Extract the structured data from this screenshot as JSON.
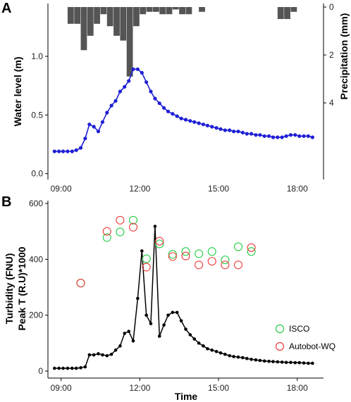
{
  "figure": {
    "panel_a_letter": "A",
    "panel_b_letter": "B",
    "colors": {
      "water_level": "#1f1fd6",
      "precipitation": "#555555",
      "turbidity": "#000000",
      "isco": "#22cc44",
      "autobot": "#ee3b3b",
      "axis": "#000000"
    }
  },
  "chart_data": [
    {
      "type": "line",
      "panel": "A",
      "xlabel": "",
      "ylabel": "Water level (m)",
      "y2label": "Precipitation (mm)",
      "xlim": [
        8.5,
        19.0
      ],
      "ylim": [
        -0.05,
        1.45
      ],
      "y2lim": [
        0,
        7.2
      ],
      "y2_inverted": true,
      "x_ticks": [
        9,
        12,
        15,
        18
      ],
      "x_tick_labels": [
        "09:00",
        "12:00",
        "15:00",
        "18:00"
      ],
      "y_ticks": [
        0.0,
        0.5,
        1.0
      ],
      "y_tick_labels": [
        "0.0",
        "0.5",
        "1.0"
      ],
      "y2_ticks": [
        0,
        2,
        4
      ],
      "y2_tick_labels": [
        "0",
        "2",
        "4"
      ],
      "series": [
        {
          "kind": "line",
          "color": "#1f1fd6",
          "x": [
            8.75,
            8.92,
            9.08,
            9.25,
            9.42,
            9.58,
            9.75,
            9.92,
            10.08,
            10.25,
            10.42,
            10.58,
            10.75,
            10.92,
            11.08,
            11.25,
            11.42,
            11.58,
            11.75,
            11.92,
            12.08,
            12.25,
            12.42,
            12.58,
            12.75,
            12.92,
            13.08,
            13.25,
            13.42,
            13.58,
            13.75,
            13.92,
            14.08,
            14.25,
            14.42,
            14.58,
            14.75,
            14.92,
            15.08,
            15.25,
            15.42,
            15.58,
            15.75,
            15.92,
            16.08,
            16.25,
            16.42,
            16.58,
            16.75,
            16.92,
            17.08,
            17.25,
            17.42,
            17.58,
            17.75,
            17.92,
            18.08,
            18.25,
            18.42,
            18.58
          ],
          "y": [
            0.19,
            0.19,
            0.19,
            0.19,
            0.19,
            0.2,
            0.22,
            0.3,
            0.42,
            0.4,
            0.36,
            0.44,
            0.52,
            0.58,
            0.62,
            0.7,
            0.74,
            0.79,
            0.89,
            0.89,
            0.86,
            0.78,
            0.7,
            0.64,
            0.6,
            0.56,
            0.53,
            0.51,
            0.49,
            0.47,
            0.46,
            0.45,
            0.44,
            0.43,
            0.42,
            0.41,
            0.4,
            0.39,
            0.38,
            0.37,
            0.37,
            0.36,
            0.36,
            0.35,
            0.34,
            0.34,
            0.33,
            0.33,
            0.32,
            0.32,
            0.31,
            0.31,
            0.31,
            0.32,
            0.33,
            0.33,
            0.32,
            0.32,
            0.32,
            0.31
          ]
        },
        {
          "kind": "bar",
          "axis": "y2",
          "color": "#555555",
          "bar_width": 0.25,
          "x": [
            9.375,
            9.625,
            9.875,
            10.125,
            10.375,
            10.625,
            10.875,
            11.125,
            11.375,
            11.625,
            11.875,
            12.125,
            12.375,
            12.625,
            12.875,
            13.125,
            13.375,
            13.625,
            13.875,
            14.125,
            14.375,
            17.375,
            17.625,
            17.875
          ],
          "y": [
            0.7,
            0.7,
            1.8,
            1.2,
            0.7,
            0.3,
            0.8,
            1.2,
            1.4,
            2.9,
            0.8,
            0.3,
            0.2,
            0.2,
            0.3,
            0.3,
            0.1,
            0.3,
            0.3,
            0.0,
            0.2,
            0.5,
            0.5,
            0.2
          ]
        }
      ]
    },
    {
      "type": "scatter",
      "panel": "B",
      "xlabel": "Time",
      "ylabel": "Turbidity (FNU)",
      "ylabel2": "Peak T (R.U)*1000",
      "xlim": [
        8.5,
        19.0
      ],
      "ylim": [
        -25,
        610
      ],
      "x_ticks": [
        9,
        12,
        15,
        18
      ],
      "x_tick_labels": [
        "09:00",
        "12:00",
        "15:00",
        "18:00"
      ],
      "y_ticks": [
        0,
        200,
        400,
        600
      ],
      "y_tick_labels": [
        "0",
        "200",
        "400",
        "600"
      ],
      "legend_position": "bottom-right",
      "series": [
        {
          "kind": "line",
          "color": "#000000",
          "x": [
            8.75,
            8.92,
            9.08,
            9.25,
            9.42,
            9.58,
            9.75,
            9.92,
            10.08,
            10.25,
            10.42,
            10.58,
            10.75,
            10.92,
            11.08,
            11.25,
            11.42,
            11.58,
            11.75,
            11.92,
            12.08,
            12.25,
            12.42,
            12.58,
            12.75,
            12.92,
            13.08,
            13.25,
            13.42,
            13.58,
            13.75,
            13.92,
            14.08,
            14.25,
            14.42,
            14.58,
            14.75,
            14.92,
            15.08,
            15.25,
            15.42,
            15.58,
            15.75,
            15.92,
            16.08,
            16.25,
            16.42,
            16.58,
            16.75,
            16.92,
            17.08,
            17.25,
            17.42,
            17.58,
            17.75,
            17.92,
            18.08,
            18.25,
            18.42,
            18.58
          ],
          "y": [
            10,
            10,
            10,
            10,
            10,
            10,
            12,
            15,
            58,
            58,
            62,
            58,
            55,
            60,
            75,
            90,
            135,
            142,
            108,
            260,
            430,
            200,
            170,
            518,
            125,
            165,
            200,
            210,
            210,
            180,
            150,
            130,
            115,
            100,
            90,
            80,
            75,
            70,
            65,
            60,
            55,
            52,
            50,
            48,
            45,
            42,
            40,
            38,
            36,
            35,
            34,
            33,
            32,
            31,
            31,
            30,
            30,
            29,
            28,
            28
          ]
        },
        {
          "kind": "scatter",
          "name": "ISCO",
          "color": "#22cc44",
          "x": [
            9.75,
            10.75,
            11.25,
            11.75,
            12.25,
            12.75,
            13.25,
            13.75,
            14.25,
            14.75,
            15.25,
            15.75,
            16.25
          ],
          "y": [
            315,
            478,
            498,
            540,
            402,
            455,
            418,
            428,
            420,
            428,
            398,
            445,
            428
          ]
        },
        {
          "kind": "scatter",
          "name": "Autobot-WQ",
          "color": "#ee3b3b",
          "x": [
            9.75,
            10.75,
            11.25,
            11.75,
            12.25,
            12.75,
            13.25,
            13.75,
            14.25,
            14.75,
            15.25,
            15.75,
            16.25
          ],
          "y": [
            315,
            500,
            540,
            515,
            372,
            465,
            410,
            412,
            380,
            393,
            380,
            380,
            442
          ]
        }
      ]
    }
  ]
}
